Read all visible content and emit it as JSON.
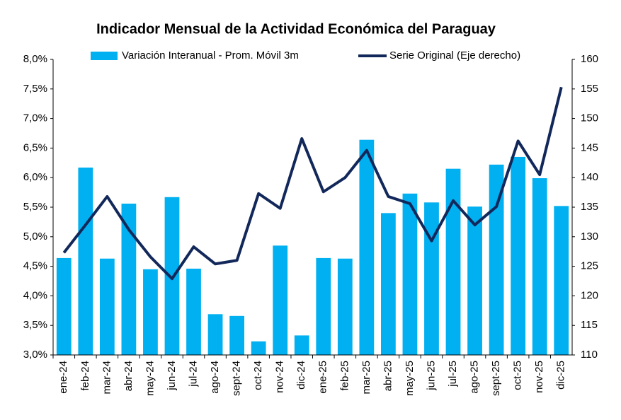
{
  "chart_data": {
    "type": "bar-line",
    "title": "Indicador Mensual de la Actividad Económica del Paraguay",
    "categories": [
      "ene-24",
      "feb-24",
      "mar-24",
      "abr-24",
      "may-24",
      "jun-24",
      "jul-24",
      "ago-24",
      "sept-24",
      "oct-24",
      "nov-24",
      "dic-24",
      "ene-25",
      "feb-25",
      "mar-25",
      "abr-25",
      "may-25",
      "jun-25",
      "jul-25",
      "ago-25",
      "sept-25",
      "oct-25",
      "nov-25",
      "dic-25"
    ],
    "series": [
      {
        "name": "Variación Interanual - Prom. Móvil 3m",
        "type": "bar",
        "color": "#00b0f0",
        "values": [
          4.64,
          6.17,
          4.63,
          5.56,
          4.45,
          5.67,
          4.46,
          3.69,
          3.66,
          3.23,
          4.85,
          3.33,
          4.64,
          4.63,
          6.64,
          5.4,
          5.73,
          5.58,
          6.15,
          5.51,
          6.22,
          6.35,
          5.99,
          5.52
        ]
      },
      {
        "name": "Serie Original (Eje derecho)",
        "type": "line",
        "axis": "y2",
        "color": "#12285a",
        "values": [
          127.3,
          132.0,
          136.8,
          131.2,
          126.6,
          122.9,
          128.3,
          125.4,
          126.0,
          137.3,
          134.8,
          146.6,
          137.6,
          140.0,
          144.6,
          136.8,
          135.6,
          129.3,
          136.1,
          132.0,
          135.1,
          146.2,
          140.5,
          155.3
        ]
      }
    ],
    "ylim": [
      3,
      8
    ],
    "yticks": [
      {
        "value": 3,
        "label": "3,0%"
      },
      {
        "value": 3.5,
        "label": "3,5%"
      },
      {
        "value": 4,
        "label": "4,0%"
      },
      {
        "value": 4.5,
        "label": "4,5%"
      },
      {
        "value": 5,
        "label": "5,0%"
      },
      {
        "value": 5.5,
        "label": "5,5%"
      },
      {
        "value": 6,
        "label": "6,0%"
      },
      {
        "value": 6.5,
        "label": "6,5%"
      },
      {
        "value": 7,
        "label": "7,0%"
      },
      {
        "value": 7.5,
        "label": "7,5%"
      },
      {
        "value": 8,
        "label": "8,0%"
      }
    ],
    "y2lim": [
      110,
      160
    ],
    "y2ticks": [
      110,
      115,
      120,
      125,
      130,
      135,
      140,
      145,
      150,
      155,
      160
    ],
    "legend": "top",
    "grid": false
  }
}
